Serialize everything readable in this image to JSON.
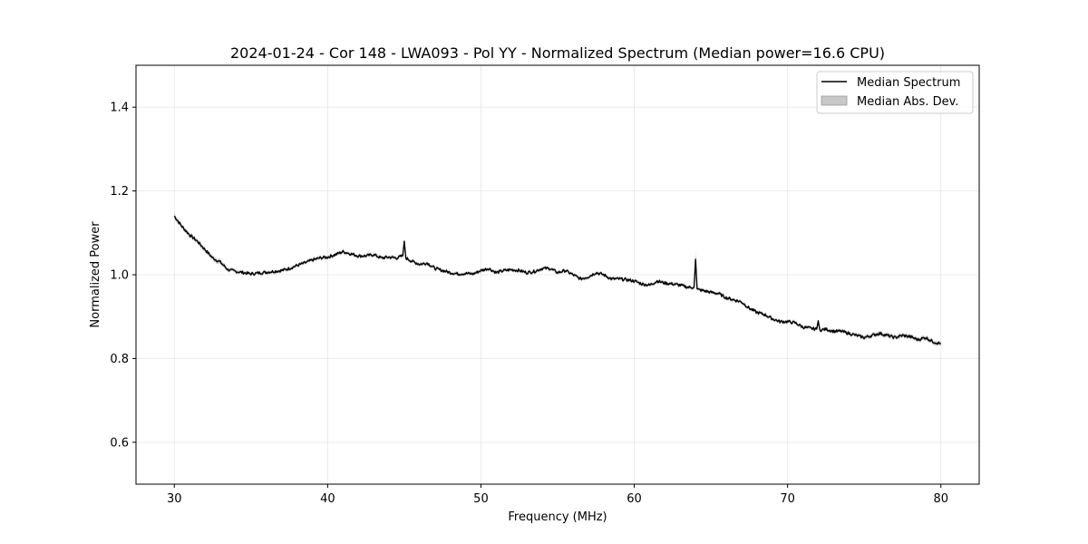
{
  "chart_data": {
    "type": "line",
    "title": "2024-01-24 - Cor 148 - LWA093 - Pol YY - Normalized Spectrum (Median power=16.6 CPU)",
    "xlabel": "Frequency (MHz)",
    "ylabel": "Normalized Power",
    "xlim": [
      27.5,
      82.5
    ],
    "ylim": [
      0.5,
      1.5
    ],
    "xticks": [
      30,
      40,
      50,
      60,
      70,
      80
    ],
    "yticks": [
      0.6,
      0.8,
      1.0,
      1.2,
      1.4
    ],
    "xtick_labels": [
      "30",
      "40",
      "50",
      "60",
      "70",
      "80"
    ],
    "ytick_labels": [
      "0.6",
      "0.8",
      "1.0",
      "1.2",
      "1.4"
    ],
    "grid": true,
    "legend_position": "top-right",
    "colors": {
      "line": "#000000",
      "band": "#b0b0b0",
      "grid": "#e6e6e6"
    },
    "series": [
      {
        "name": "Median Spectrum",
        "kind": "line",
        "x": [
          30,
          30.5,
          31,
          31.5,
          32,
          32.5,
          33,
          33.5,
          34,
          34.5,
          35,
          35.5,
          36,
          36.5,
          37,
          37.5,
          38,
          38.5,
          39,
          39.5,
          40,
          40.5,
          41,
          41.5,
          42,
          42.5,
          43,
          43.5,
          44,
          44.5,
          44.9,
          45.0,
          45.1,
          45.5,
          46,
          46.5,
          47,
          47.5,
          48,
          48.5,
          49,
          49.5,
          50,
          50.5,
          51,
          51.5,
          52,
          52.5,
          53,
          53.5,
          54,
          54.5,
          55,
          55.5,
          56,
          56.5,
          57,
          57.5,
          58,
          58.5,
          59,
          59.5,
          60,
          60.5,
          61,
          61.5,
          62,
          62.5,
          63,
          63.5,
          63.9,
          64.0,
          64.1,
          64.5,
          65,
          65.5,
          66,
          66.5,
          67,
          67.5,
          68,
          68.5,
          69,
          69.5,
          70,
          70.5,
          71,
          71.5,
          71.9,
          72.0,
          72.1,
          72.5,
          73,
          73.5,
          74,
          74.5,
          75,
          75.5,
          76,
          76.5,
          77,
          77.5,
          78,
          78.5,
          79,
          79.5,
          80
        ],
        "values": [
          1.14,
          1.115,
          1.095,
          1.08,
          1.06,
          1.04,
          1.03,
          1.012,
          1.008,
          1.005,
          1.002,
          1.004,
          1.006,
          1.008,
          1.01,
          1.015,
          1.022,
          1.028,
          1.035,
          1.04,
          1.042,
          1.048,
          1.055,
          1.05,
          1.045,
          1.045,
          1.048,
          1.04,
          1.042,
          1.04,
          1.045,
          1.08,
          1.04,
          1.032,
          1.025,
          1.028,
          1.015,
          1.01,
          1.005,
          1.002,
          1.003,
          1.002,
          1.01,
          1.015,
          1.005,
          1.01,
          1.012,
          1.01,
          1.005,
          1.008,
          1.015,
          1.015,
          1.005,
          1.01,
          1.0,
          0.99,
          0.995,
          1.005,
          1.0,
          0.99,
          0.99,
          0.988,
          0.985,
          0.978,
          0.975,
          0.985,
          0.98,
          0.978,
          0.975,
          0.97,
          0.97,
          1.037,
          0.965,
          0.962,
          0.958,
          0.955,
          0.945,
          0.94,
          0.935,
          0.92,
          0.91,
          0.905,
          0.895,
          0.888,
          0.888,
          0.885,
          0.875,
          0.872,
          0.87,
          0.89,
          0.868,
          0.87,
          0.865,
          0.865,
          0.86,
          0.855,
          0.85,
          0.855,
          0.86,
          0.855,
          0.85,
          0.855,
          0.852,
          0.845,
          0.85,
          0.84,
          0.835
        ]
      },
      {
        "name": "Median Abs. Dev.",
        "kind": "band",
        "halfwidth": [
          0.006,
          0.005,
          0.005,
          0.005,
          0.005,
          0.005,
          0.006,
          0.004,
          0.004,
          0.004,
          0.004,
          0.004,
          0.004,
          0.004,
          0.004,
          0.004,
          0.004,
          0.004,
          0.004,
          0.004,
          0.004,
          0.004,
          0.004,
          0.004,
          0.004,
          0.004,
          0.004,
          0.004,
          0.004,
          0.004,
          0.004,
          0.006,
          0.004,
          0.004,
          0.004,
          0.004,
          0.004,
          0.004,
          0.004,
          0.004,
          0.004,
          0.004,
          0.004,
          0.004,
          0.004,
          0.004,
          0.004,
          0.004,
          0.004,
          0.004,
          0.004,
          0.004,
          0.004,
          0.004,
          0.004,
          0.004,
          0.004,
          0.004,
          0.004,
          0.004,
          0.004,
          0.004,
          0.004,
          0.004,
          0.004,
          0.004,
          0.004,
          0.004,
          0.004,
          0.004,
          0.004,
          0.018,
          0.004,
          0.004,
          0.004,
          0.004,
          0.004,
          0.004,
          0.004,
          0.004,
          0.004,
          0.004,
          0.004,
          0.004,
          0.004,
          0.004,
          0.004,
          0.004,
          0.004,
          0.005,
          0.004,
          0.004,
          0.004,
          0.004,
          0.004,
          0.004,
          0.005,
          0.005,
          0.005,
          0.005,
          0.005,
          0.005,
          0.005,
          0.005,
          0.005,
          0.005,
          0.005
        ]
      }
    ]
  }
}
